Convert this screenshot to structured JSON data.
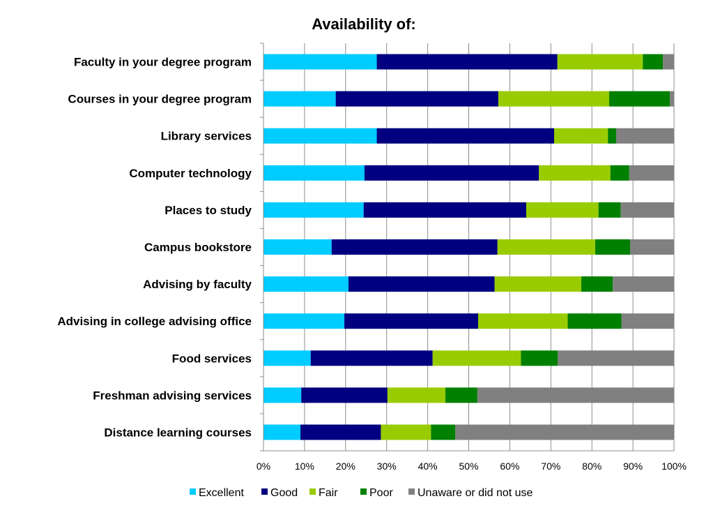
{
  "chart_data": {
    "type": "bar",
    "orientation": "horizontal",
    "stacked": true,
    "title": "Availability of:",
    "xlabel": "",
    "ylabel": "",
    "xlim": [
      0,
      100
    ],
    "x_ticks": [
      "0%",
      "10%",
      "20%",
      "30%",
      "40%",
      "50%",
      "60%",
      "70%",
      "80%",
      "90%",
      "100%"
    ],
    "grid": "vertical",
    "legend_position": "bottom",
    "categories": [
      "Faculty in your degree program",
      "Courses in your degree program",
      "Library services",
      "Computer technology",
      "Places to study",
      "Campus bookstore",
      "Advising by faculty",
      "Advising in college advising office",
      "Food services",
      "Freshman advising services",
      "Distance learning courses"
    ],
    "series": [
      {
        "name": "Excellent",
        "color": "#00ccff",
        "values": [
          27.6,
          17.6,
          27.6,
          24.6,
          24.4,
          16.6,
          20.7,
          19.7,
          11.5,
          9.2,
          9.0
        ]
      },
      {
        "name": "Good",
        "color": "#000080",
        "values": [
          44.0,
          39.6,
          43.2,
          42.5,
          39.6,
          40.4,
          35.6,
          32.6,
          29.7,
          21.0,
          19.6
        ]
      },
      {
        "name": "Fair",
        "color": "#99cc00",
        "values": [
          20.8,
          27.0,
          13.1,
          17.4,
          17.6,
          23.8,
          21.1,
          21.8,
          21.5,
          14.1,
          12.2
        ]
      },
      {
        "name": "Poor",
        "color": "#008000",
        "values": [
          4.9,
          14.8,
          2.0,
          4.6,
          5.4,
          8.5,
          7.7,
          13.1,
          9.0,
          7.8,
          5.9
        ]
      },
      {
        "name": "Unaware or did not use",
        "color": "#808080",
        "values": [
          2.7,
          1.0,
          14.1,
          10.9,
          13.0,
          10.7,
          14.9,
          12.8,
          28.3,
          47.9,
          53.3
        ]
      }
    ]
  }
}
